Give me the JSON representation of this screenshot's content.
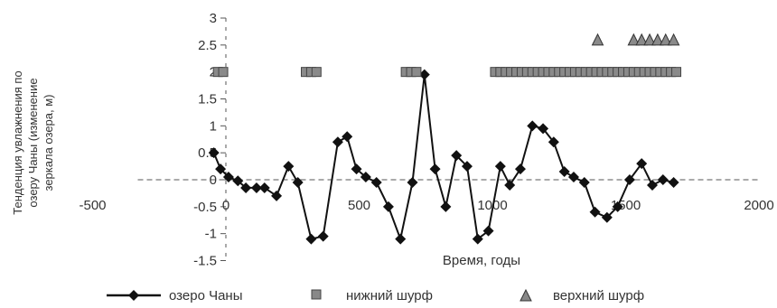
{
  "chart_data": {
    "type": "scatter",
    "title": "",
    "xlabel": "Время, годы",
    "ylabel": "Тенденция увлажнения по озеру Чаны (изменение зеркала озера, м)",
    "ylabel_lines": [
      "Тенденция увлажнения по",
      "озеру Чаны (изменение",
      "зеркала озера, м)"
    ],
    "xlim": [
      -500,
      2000
    ],
    "ylim": [
      -1.5,
      3
    ],
    "x_ticks": [
      -500,
      0,
      500,
      1000,
      1500,
      2000
    ],
    "x_tick_labels": [
      "-500",
      "0",
      "500",
      "1000",
      "1500",
      "2000"
    ],
    "y_ticks": [
      -1.5,
      -1,
      -0.5,
      0,
      0.5,
      1,
      1.5,
      2,
      2.5,
      3
    ],
    "y_tick_labels": [
      "-1.5",
      "-1",
      "-0.5",
      "0",
      "0.5",
      "1",
      "1.5",
      "2",
      "2.5",
      "3"
    ],
    "grid": false,
    "legend_position": "bottom",
    "series": [
      {
        "name": "озеро Чаны",
        "marker": "diamond",
        "line": true,
        "color": "#111111",
        "points": [
          [
            -45,
            0.5
          ],
          [
            -20,
            0.2
          ],
          [
            10,
            0.05
          ],
          [
            45,
            -0.02
          ],
          [
            75,
            -0.15
          ],
          [
            115,
            -0.15
          ],
          [
            145,
            -0.15
          ],
          [
            190,
            -0.3
          ],
          [
            235,
            0.25
          ],
          [
            270,
            -0.05
          ],
          [
            320,
            -1.1
          ],
          [
            365,
            -1.05
          ],
          [
            420,
            0.7
          ],
          [
            455,
            0.8
          ],
          [
            490,
            0.2
          ],
          [
            525,
            0.05
          ],
          [
            565,
            -0.05
          ],
          [
            610,
            -0.5
          ],
          [
            655,
            -1.1
          ],
          [
            700,
            -0.05
          ],
          [
            745,
            1.95
          ],
          [
            785,
            0.2
          ],
          [
            825,
            -0.5
          ],
          [
            865,
            0.45
          ],
          [
            905,
            0.25
          ],
          [
            945,
            -1.1
          ],
          [
            985,
            -0.95
          ],
          [
            1030,
            0.25
          ],
          [
            1065,
            -0.1
          ],
          [
            1105,
            0.2
          ],
          [
            1150,
            1.0
          ],
          [
            1190,
            0.95
          ],
          [
            1230,
            0.7
          ],
          [
            1270,
            0.15
          ],
          [
            1305,
            0.05
          ],
          [
            1345,
            -0.05
          ],
          [
            1385,
            -0.6
          ],
          [
            1430,
            -0.7
          ],
          [
            1470,
            -0.5
          ],
          [
            1515,
            0.0
          ],
          [
            1560,
            0.3
          ],
          [
            1600,
            -0.1
          ],
          [
            1640,
            0.0
          ],
          [
            1680,
            -0.05
          ]
        ]
      },
      {
        "name": "нижний шурф",
        "marker": "square",
        "line": false,
        "color": "#777777",
        "points": [
          [
            -30,
            2
          ],
          [
            -10,
            2
          ],
          [
            300,
            2
          ],
          [
            320,
            2
          ],
          [
            340,
            2
          ],
          [
            675,
            2
          ],
          [
            695,
            2
          ],
          [
            715,
            2
          ],
          [
            1010,
            2
          ],
          [
            1030,
            2
          ],
          [
            1050,
            2
          ],
          [
            1070,
            2
          ],
          [
            1090,
            2
          ],
          [
            1110,
            2
          ],
          [
            1130,
            2
          ],
          [
            1150,
            2
          ],
          [
            1170,
            2
          ],
          [
            1190,
            2
          ],
          [
            1210,
            2
          ],
          [
            1230,
            2
          ],
          [
            1250,
            2
          ],
          [
            1270,
            2
          ],
          [
            1290,
            2
          ],
          [
            1310,
            2
          ],
          [
            1330,
            2
          ],
          [
            1350,
            2
          ],
          [
            1370,
            2
          ],
          [
            1390,
            2
          ],
          [
            1410,
            2
          ],
          [
            1430,
            2
          ],
          [
            1450,
            2
          ],
          [
            1470,
            2
          ],
          [
            1490,
            2
          ],
          [
            1510,
            2
          ],
          [
            1530,
            2
          ],
          [
            1550,
            2
          ],
          [
            1570,
            2
          ],
          [
            1590,
            2
          ],
          [
            1610,
            2
          ],
          [
            1630,
            2
          ],
          [
            1650,
            2
          ],
          [
            1670,
            2
          ],
          [
            1690,
            2
          ]
        ]
      },
      {
        "name": "верхний шурф",
        "marker": "triangle",
        "line": false,
        "color": "#555555",
        "points": [
          [
            1395,
            2.6
          ],
          [
            1530,
            2.6
          ],
          [
            1560,
            2.6
          ],
          [
            1590,
            2.6
          ],
          [
            1620,
            2.6
          ],
          [
            1650,
            2.6
          ],
          [
            1680,
            2.6
          ]
        ]
      }
    ]
  }
}
